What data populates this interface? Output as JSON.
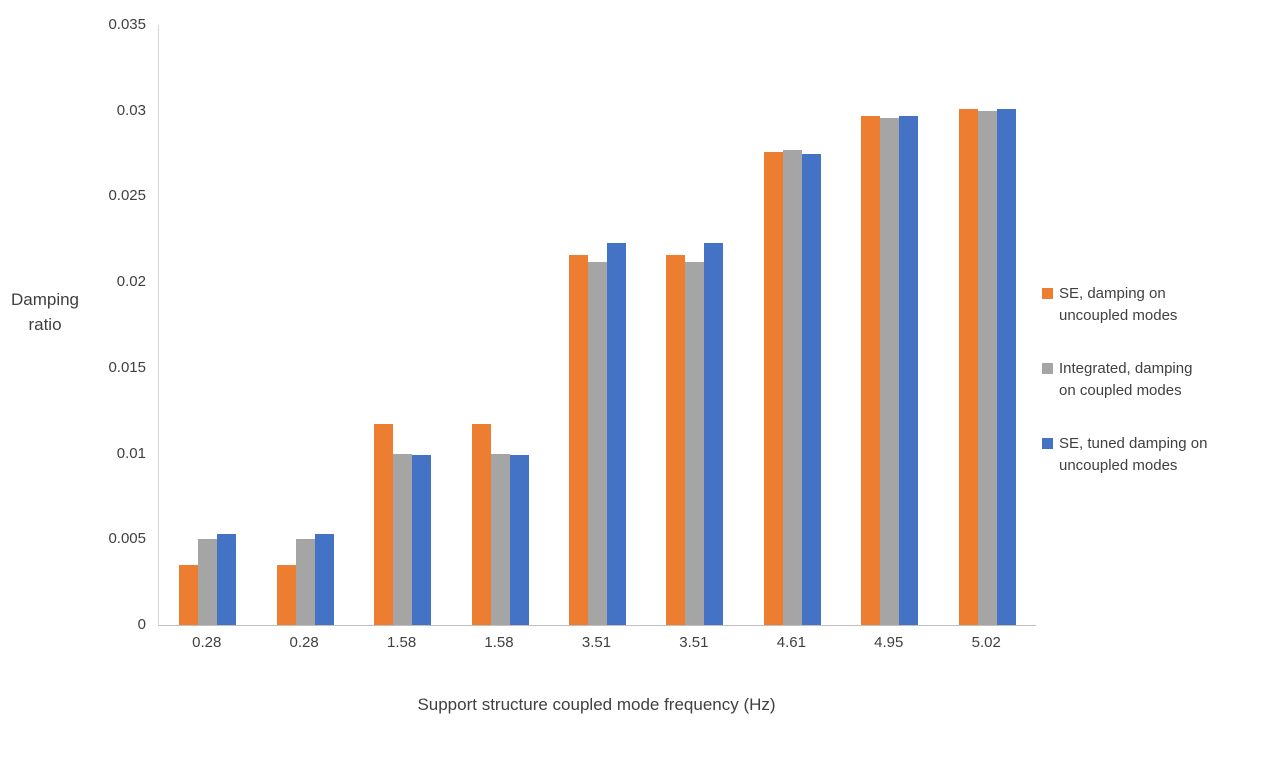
{
  "chart_data": {
    "type": "bar",
    "title": "",
    "xlabel": "Support structure coupled mode frequency (Hz)",
    "ylabel": "Damping ratio",
    "ylabel_lines": [
      "Damping",
      "ratio"
    ],
    "ylim": [
      0,
      0.035
    ],
    "yticks": [
      "0.035",
      "0.03",
      "0.025",
      "0.02",
      "0.015",
      "0.01",
      "0.005",
      "0"
    ],
    "grid": false,
    "legend_position": "right",
    "categories": [
      "0.28",
      "0.28",
      "1.58",
      "1.58",
      "3.51",
      "3.51",
      "4.61",
      "4.95",
      "5.02"
    ],
    "series": [
      {
        "name": "SE, damping on uncoupled modes",
        "color": "#ED7D31",
        "values": [
          0.0035,
          0.0035,
          0.0117,
          0.0117,
          0.0216,
          0.0216,
          0.0276,
          0.0297,
          0.0301
        ]
      },
      {
        "name": "Integrated, damping on coupled modes",
        "color": "#A5A5A5",
        "values": [
          0.005,
          0.005,
          0.01,
          0.01,
          0.0212,
          0.0212,
          0.0277,
          0.0296,
          0.03
        ]
      },
      {
        "name": "SE, tuned damping on uncoupled modes",
        "color": "#4472C4",
        "values": [
          0.0053,
          0.0053,
          0.0099,
          0.0099,
          0.0223,
          0.0223,
          0.0275,
          0.0297,
          0.0301
        ]
      }
    ]
  }
}
